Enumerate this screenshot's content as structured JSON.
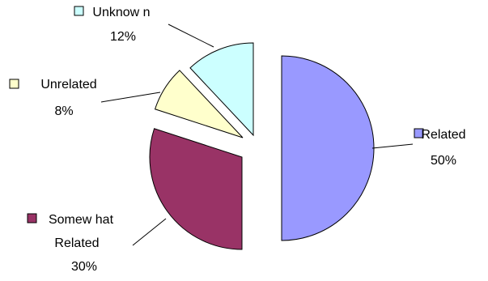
{
  "chart_data": {
    "type": "pie",
    "title": "",
    "slices": [
      {
        "label": "Related",
        "value": 50,
        "pct_label": "50%",
        "color": "#9999ff"
      },
      {
        "label": "Somew hat Related",
        "label_lines": [
          "Somew hat",
          "Related"
        ],
        "value": 30,
        "pct_label": "30%",
        "color": "#993366"
      },
      {
        "label": "Unrelated",
        "value": 8,
        "pct_label": "8%",
        "color": "#ffffcc"
      },
      {
        "label": "Unknow n",
        "value": 12,
        "pct_label": "12%",
        "color": "#ccffff"
      }
    ],
    "exploded": true,
    "legend": "none",
    "data_labels": "category and percentage with leader lines"
  }
}
